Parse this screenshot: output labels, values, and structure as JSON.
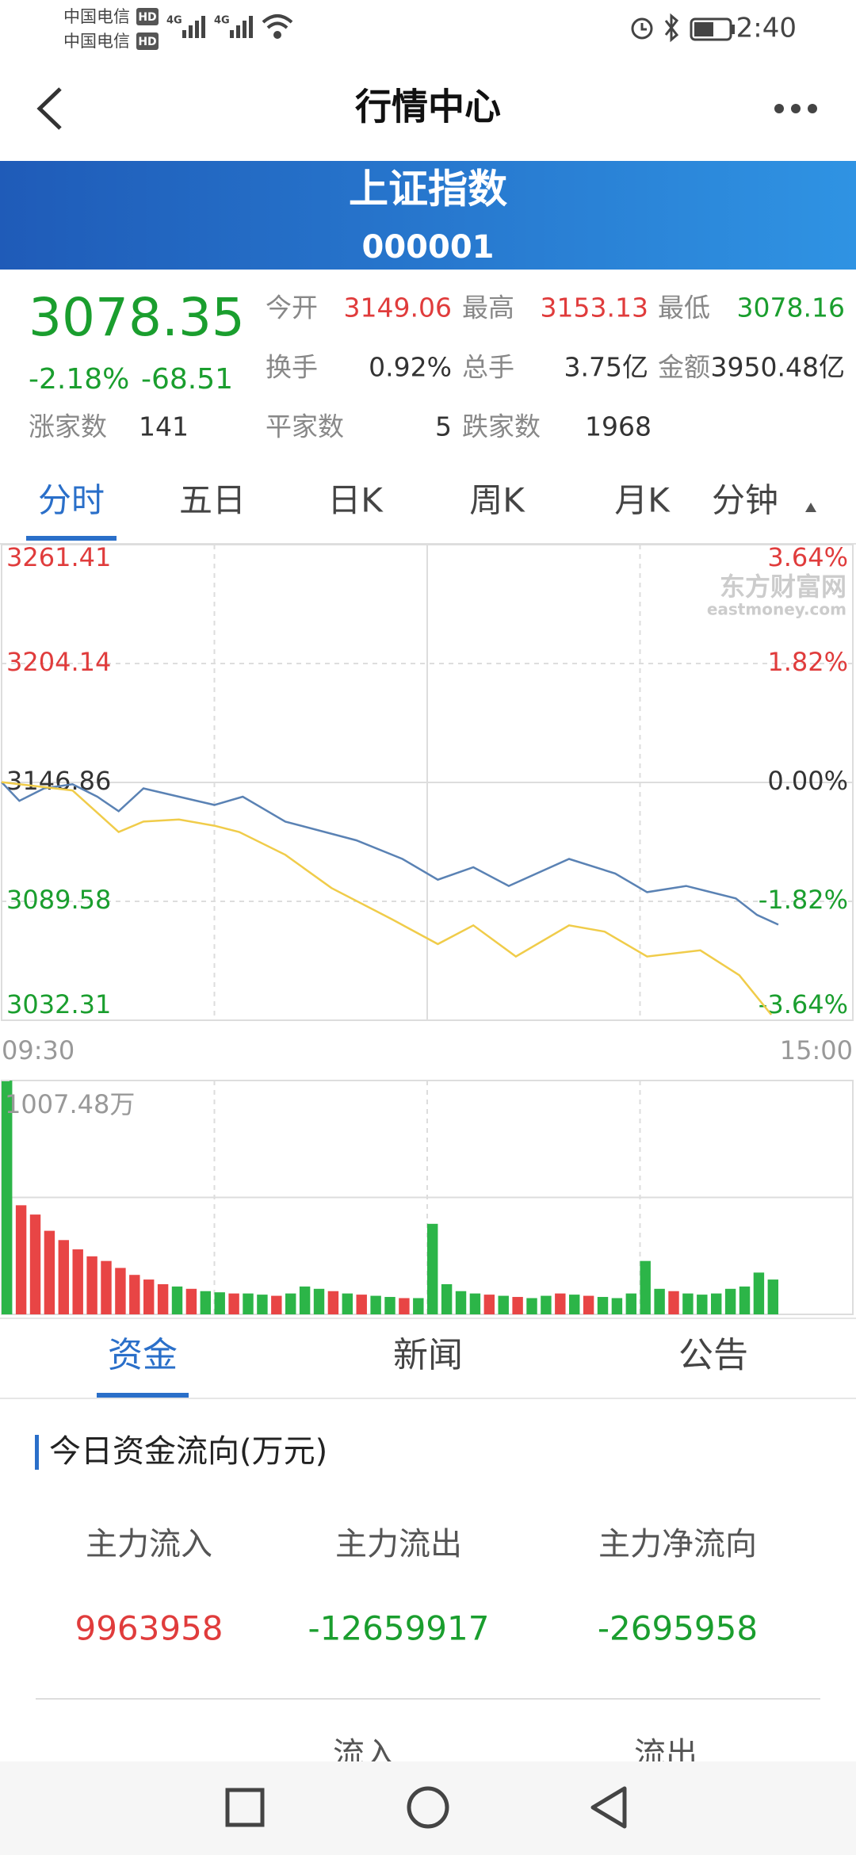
{
  "status_bar": {
    "carrier1": "中国电信",
    "carrier2": "中国电信",
    "hd": "HD",
    "network": "4G",
    "time": "2:40"
  },
  "nav": {
    "title": "行情中心"
  },
  "header": {
    "name": "上证指数",
    "code": "000001"
  },
  "quote": {
    "price": "3078.35",
    "change_pct": "-2.18%",
    "change": "-68.51",
    "fields": [
      {
        "label": "今开",
        "value": "3149.06"
      },
      {
        "label": "最高",
        "value": "3153.13"
      },
      {
        "label": "最低",
        "value": "3078.16"
      },
      {
        "label": "换手",
        "value": "0.92%"
      },
      {
        "label": "总手",
        "value": "3.75亿"
      },
      {
        "label": "金额",
        "value": "3950.48亿"
      }
    ],
    "stats": [
      {
        "label": "涨家数",
        "value": "141"
      },
      {
        "label": "平家数",
        "value": "5"
      },
      {
        "label": "跌家数",
        "value": "1968"
      }
    ]
  },
  "tabs": [
    "分时",
    "五日",
    "日K",
    "周K",
    "月K",
    "分钟"
  ],
  "watermark": {
    "name": "东方财富网",
    "domain": "eastmoney.com"
  },
  "chart_data": [
    {
      "type": "line",
      "xlim": [
        0,
        240
      ],
      "xticks": [
        {
          "value": 0,
          "label": "09:30"
        },
        {
          "value": 240,
          "label": "15:00"
        }
      ],
      "ylim": [
        3032.31,
        3261.41
      ],
      "yticks": [
        3032.31,
        3089.58,
        3146.86,
        3204.14,
        3261.41
      ],
      "y2lim": [
        -3.64,
        3.64
      ],
      "y2ticks": [
        {
          "value": -3.64,
          "label": "-3.64%"
        },
        {
          "value": -1.82,
          "label": "-1.82%"
        },
        {
          "value": 0,
          "label": "0.00%"
        },
        {
          "value": 1.82,
          "label": "1.82%"
        },
        {
          "value": 3.64,
          "label": "3.64%"
        }
      ],
      "grid": true,
      "series": [
        {
          "color": "#5a82b4",
          "x": [
            0,
            5,
            12,
            20,
            27,
            33,
            40,
            50,
            60,
            68,
            80,
            100,
            113,
            123,
            133,
            143,
            160,
            173,
            182,
            193,
            207,
            213,
            219
          ],
          "values": [
            3147.0,
            3138.0,
            3144.0,
            3146.0,
            3140.0,
            3133.0,
            3144.0,
            3140.0,
            3136.0,
            3140.0,
            3128.0,
            3119.0,
            3110.0,
            3100.0,
            3106.0,
            3097.0,
            3110.0,
            3103.0,
            3094.0,
            3097.0,
            3091.0,
            3083.0,
            3078.35
          ]
        },
        {
          "color": "#f0cc4a",
          "x": [
            0,
            10,
            20,
            33,
            40,
            50,
            60,
            67,
            80,
            93,
            110,
            123,
            133,
            145,
            160,
            170,
            182,
            197,
            208,
            217
          ],
          "values": [
            3147,
            3145,
            3143,
            3123,
            3128,
            3129,
            3126,
            3123,
            3112,
            3096,
            3081,
            3069,
            3078,
            3063,
            3078,
            3075,
            3063,
            3066,
            3054,
            3035
          ]
        }
      ]
    },
    {
      "type": "bar",
      "xlim": [
        0,
        240
      ],
      "ylim": [
        0,
        1007.48
      ],
      "yticks": [
        {
          "value": 1007.48,
          "label": "1007.48万"
        }
      ],
      "x": [
        0,
        4,
        8,
        12,
        16,
        20,
        24,
        28,
        32,
        36,
        40,
        44,
        48,
        52,
        56,
        60,
        64,
        68,
        72,
        76,
        80,
        84,
        88,
        92,
        96,
        100,
        104,
        108,
        112,
        116,
        120,
        124,
        128,
        132,
        136,
        140,
        144,
        148,
        152,
        156,
        160,
        164,
        168,
        172,
        176,
        180,
        184,
        188,
        192,
        196,
        200,
        204,
        208,
        212,
        216
      ],
      "values": [
        1007,
        470,
        430,
        360,
        320,
        280,
        250,
        230,
        200,
        170,
        150,
        130,
        120,
        110,
        100,
        95,
        90,
        90,
        85,
        80,
        90,
        120,
        110,
        100,
        90,
        85,
        80,
        75,
        70,
        70,
        390,
        130,
        100,
        90,
        85,
        80,
        75,
        70,
        80,
        90,
        85,
        80,
        75,
        70,
        90,
        230,
        110,
        100,
        90,
        85,
        90,
        110,
        120,
        180,
        150
      ],
      "colors": [
        "#2cb548",
        "#e84545",
        "#e84545",
        "#e84545",
        "#e84545",
        "#e84545",
        "#e84545",
        "#e84545",
        "#e84545",
        "#e84545",
        "#e84545",
        "#e84545",
        "#2cb548",
        "#e84545",
        "#2cb548",
        "#2cb548",
        "#e84545",
        "#2cb548",
        "#2cb548",
        "#e84545",
        "#2cb548",
        "#2cb548",
        "#2cb548",
        "#e84545",
        "#2cb548",
        "#e84545",
        "#2cb548",
        "#2cb548",
        "#e84545",
        "#2cb548",
        "#2cb548",
        "#2cb548",
        "#2cb548",
        "#2cb548",
        "#e84545",
        "#2cb548",
        "#e84545",
        "#2cb548",
        "#2cb548",
        "#e84545",
        "#2cb548",
        "#e84545",
        "#2cb548",
        "#2cb548",
        "#2cb548",
        "#2cb548",
        "#2cb548",
        "#e84545",
        "#2cb548",
        "#2cb548",
        "#2cb548",
        "#2cb548",
        "#2cb548",
        "#2cb548",
        "#2cb548"
      ]
    }
  ],
  "bottom_tabs": [
    "资金",
    "新闻",
    "公告"
  ],
  "fund_flow": {
    "title": "今日资金流向(万元)",
    "columns": [
      {
        "label": "主力流入",
        "value": "9963958"
      },
      {
        "label": "主力流出",
        "value": "-12659917"
      },
      {
        "label": "主力净流向",
        "value": "-2695958"
      }
    ],
    "sub_headers": [
      "流入",
      "流出"
    ]
  }
}
